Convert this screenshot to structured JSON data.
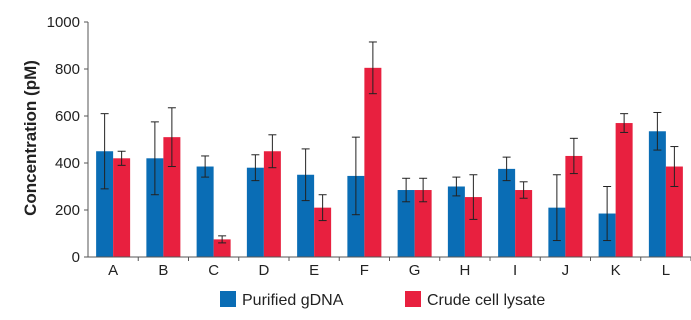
{
  "colors": {
    "series_a": "#0a6db5",
    "series_b": "#e8203f",
    "axis": "#555555",
    "error": "#222222"
  },
  "chart_data": {
    "type": "bar",
    "title": "",
    "xlabel": "",
    "ylabel": "Concentration (pM)",
    "ylim": [
      0,
      1000
    ],
    "yticks": [
      "0",
      "200",
      "400",
      "600",
      "800",
      "1000"
    ],
    "categories": [
      "A",
      "B",
      "C",
      "D",
      "E",
      "F",
      "G",
      "H",
      "I",
      "J",
      "K",
      "L"
    ],
    "series": [
      {
        "name": "Purified gDNA",
        "values": [
          450,
          420,
          385,
          380,
          350,
          345,
          285,
          300,
          375,
          210,
          185,
          535
        ],
        "err": [
          160,
          155,
          45,
          55,
          110,
          165,
          50,
          40,
          50,
          140,
          115,
          80
        ]
      },
      {
        "name": "Crude cell lysate",
        "values": [
          420,
          510,
          75,
          450,
          210,
          805,
          285,
          255,
          285,
          430,
          570,
          385
        ],
        "err": [
          30,
          125,
          15,
          70,
          55,
          110,
          50,
          95,
          35,
          75,
          40,
          85
        ]
      }
    ],
    "grid": false,
    "legend": "bottom"
  }
}
